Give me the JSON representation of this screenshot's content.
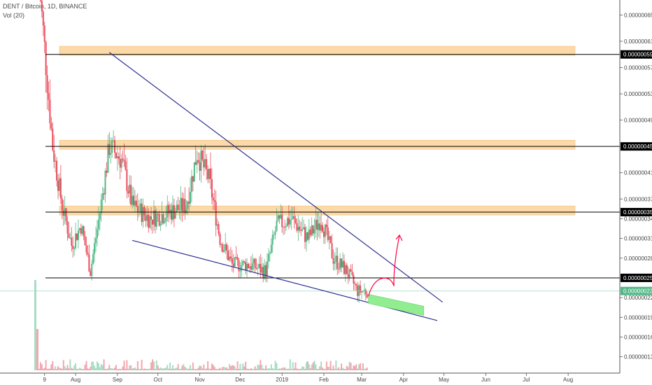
{
  "header": {
    "symbol": "DENT / Bitcoin, 1D, BINANCE",
    "volume_label": "Vol (20)"
  },
  "colors": {
    "up": "#53b987",
    "down": "#eb4d5c",
    "vol_up": "#a9dcc3",
    "vol_down": "#f5a6ae",
    "zone": "#fbd9a8",
    "trendline": "#2e3192",
    "level_line": "#000000",
    "projection_arrow": "#ff0040",
    "target_box": "#90ee90",
    "last_price_tag": "#53b987"
  },
  "chart_data": {
    "type": "candlestick",
    "x_axis_ticks": [
      "9",
      "Aug",
      "Sep",
      "Oct",
      "Nov",
      "Dec",
      "2019",
      "Feb",
      "Mar",
      "Apr",
      "May",
      "Jun",
      "Jul",
      "Aug"
    ],
    "y_axis_ticks": [
      "0.00000065",
      "0.00000061",
      "0.00000057",
      "0.00000053",
      "0.00000049",
      "0.00000041",
      "0.00000037",
      "0.00000034",
      "0.00000031",
      "0.00000028",
      "0.00000022",
      "0.00000019",
      "0.00000016",
      "0.00000013"
    ],
    "price_tags": [
      {
        "label": "0.00000059",
        "kind": "level"
      },
      {
        "label": "0.00000045",
        "kind": "level"
      },
      {
        "label": "0.00000035",
        "kind": "level"
      },
      {
        "label": "0.00000025",
        "kind": "level"
      },
      {
        "label": "0.00000023",
        "kind": "last"
      }
    ],
    "resistance_zones": [
      5.95e-07,
      4.52e-07,
      3.52e-07
    ],
    "horizontal_levels": [
      5.9e-07,
      4.5e-07,
      3.5e-07,
      2.5e-07
    ],
    "upper_trendline": {
      "from": {
        "date": "2018-08-26",
        "price": 5.93e-07
      },
      "to": {
        "date": "2019-04-30",
        "price": 2.13e-07
      }
    },
    "lower_trendline": {
      "from": {
        "date": "2018-09-12",
        "price": 3.07e-07
      },
      "to": {
        "date": "2019-04-26",
        "price": 1.85e-07
      }
    },
    "projection_box": {
      "from_date": "2019-03-06",
      "to_date": "2019-04-16",
      "top_start": 2.25e-07,
      "top_end": 2.07e-07,
      "bottom_end": 1.93e-07
    },
    "projection_arrow": {
      "from": {
        "date": "2019-03-06",
        "price": 2.22e-07
      },
      "to": {
        "date": "2019-03-29",
        "price": 3.15e-07
      }
    },
    "ohlc_segments": [
      {
        "date": "2018-07-05",
        "price": 7e-07
      },
      {
        "date": "2018-07-09",
        "price": 6e-07
      },
      {
        "date": "2018-07-15",
        "price": 4.5e-07
      },
      {
        "date": "2018-07-22",
        "price": 3.6e-07
      },
      {
        "date": "2018-07-29",
        "price": 3e-07
      },
      {
        "date": "2018-08-05",
        "price": 3.3e-07
      },
      {
        "date": "2018-08-12",
        "price": 2.6e-07
      },
      {
        "date": "2018-08-19",
        "price": 3.5e-07
      },
      {
        "date": "2018-08-26",
        "price": 4.5e-07
      },
      {
        "date": "2018-09-04",
        "price": 4.3e-07
      },
      {
        "date": "2018-09-12",
        "price": 3.6e-07
      },
      {
        "date": "2018-09-25",
        "price": 3.4e-07
      },
      {
        "date": "2018-10-10",
        "price": 3.5e-07
      },
      {
        "date": "2018-10-22",
        "price": 3.6e-07
      },
      {
        "date": "2018-10-30",
        "price": 4.4e-07
      },
      {
        "date": "2018-11-08",
        "price": 4e-07
      },
      {
        "date": "2018-11-16",
        "price": 3.1e-07
      },
      {
        "date": "2018-11-25",
        "price": 2.7e-07
      },
      {
        "date": "2018-12-08",
        "price": 2.7e-07
      },
      {
        "date": "2018-12-20",
        "price": 2.6e-07
      },
      {
        "date": "2018-12-28",
        "price": 3.3e-07
      },
      {
        "date": "2019-01-08",
        "price": 3.4e-07
      },
      {
        "date": "2019-01-20",
        "price": 3.1e-07
      },
      {
        "date": "2019-01-30",
        "price": 3.4e-07
      },
      {
        "date": "2019-02-08",
        "price": 2.8e-07
      },
      {
        "date": "2019-02-18",
        "price": 2.6e-07
      },
      {
        "date": "2019-02-26",
        "price": 2.3e-07
      },
      {
        "date": "2019-03-06",
        "price": 2.3e-07
      }
    ]
  }
}
